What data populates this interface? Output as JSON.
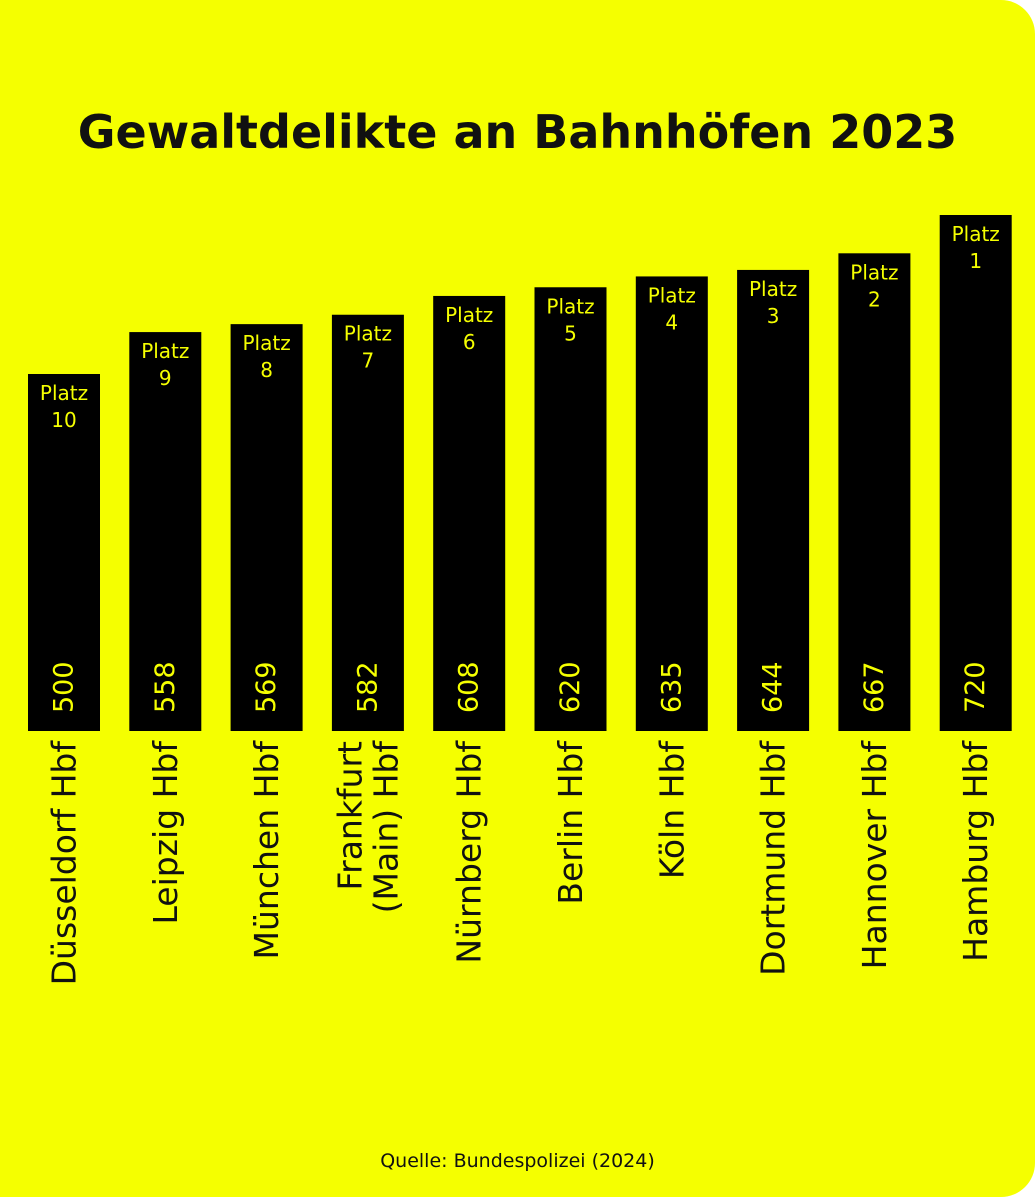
{
  "colors": {
    "background": "#f5ff00",
    "bar": "#000000",
    "bar_text": "#f5ff00",
    "text": "#111111"
  },
  "chart_data": {
    "type": "bar",
    "title": "Gewaltdelikte an Bahnhöfen 2023",
    "source": "Quelle: Bundespolizei (2024)",
    "rank_prefix": "Platz",
    "categories": [
      [
        "Düsseldorf Hbf"
      ],
      [
        "Leipzig Hbf"
      ],
      [
        "München Hbf"
      ],
      [
        "Frankfurt",
        "(Main) Hbf"
      ],
      [
        "Nürnberg Hbf"
      ],
      [
        "Berlin Hbf"
      ],
      [
        "Köln Hbf"
      ],
      [
        "Dortmund Hbf"
      ],
      [
        "Hannover Hbf"
      ],
      [
        "Hamburg Hbf"
      ]
    ],
    "ranks": [
      "10",
      "9",
      "8",
      "7",
      "6",
      "5",
      "4",
      "3",
      "2",
      "1"
    ],
    "values": [
      500,
      558,
      569,
      582,
      608,
      620,
      635,
      644,
      667,
      720
    ],
    "value_labels_rotated": true,
    "category_labels_rotated": true,
    "axes_visible": false,
    "grid": false,
    "legend": "none"
  }
}
